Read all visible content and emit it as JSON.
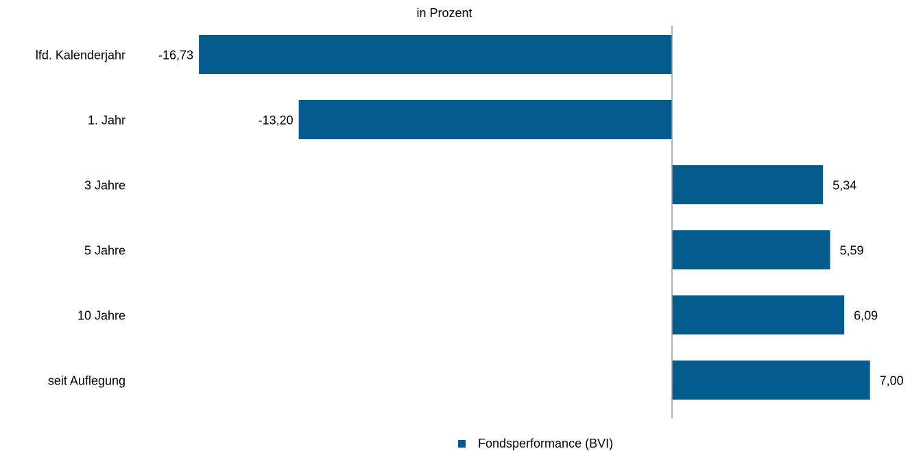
{
  "chart_data": {
    "type": "barh",
    "title": "in Prozent",
    "categories": [
      "lfd. Kalenderjahr",
      "1. Jahr",
      "3 Jahre",
      "5 Jahre",
      "10 Jahre",
      "seit Auflegung"
    ],
    "series": [
      {
        "name": "Fondsperformance (BVI)",
        "color": "#035c8d",
        "values": [
          -16.73,
          -13.2,
          5.34,
          5.59,
          6.09,
          7.0
        ],
        "value_labels": [
          "-16,73",
          "-13,20",
          "5,34",
          "5,59",
          "6,09",
          "7,00"
        ]
      }
    ],
    "xlim": [
      -18,
      8
    ],
    "legend": "bottom"
  }
}
